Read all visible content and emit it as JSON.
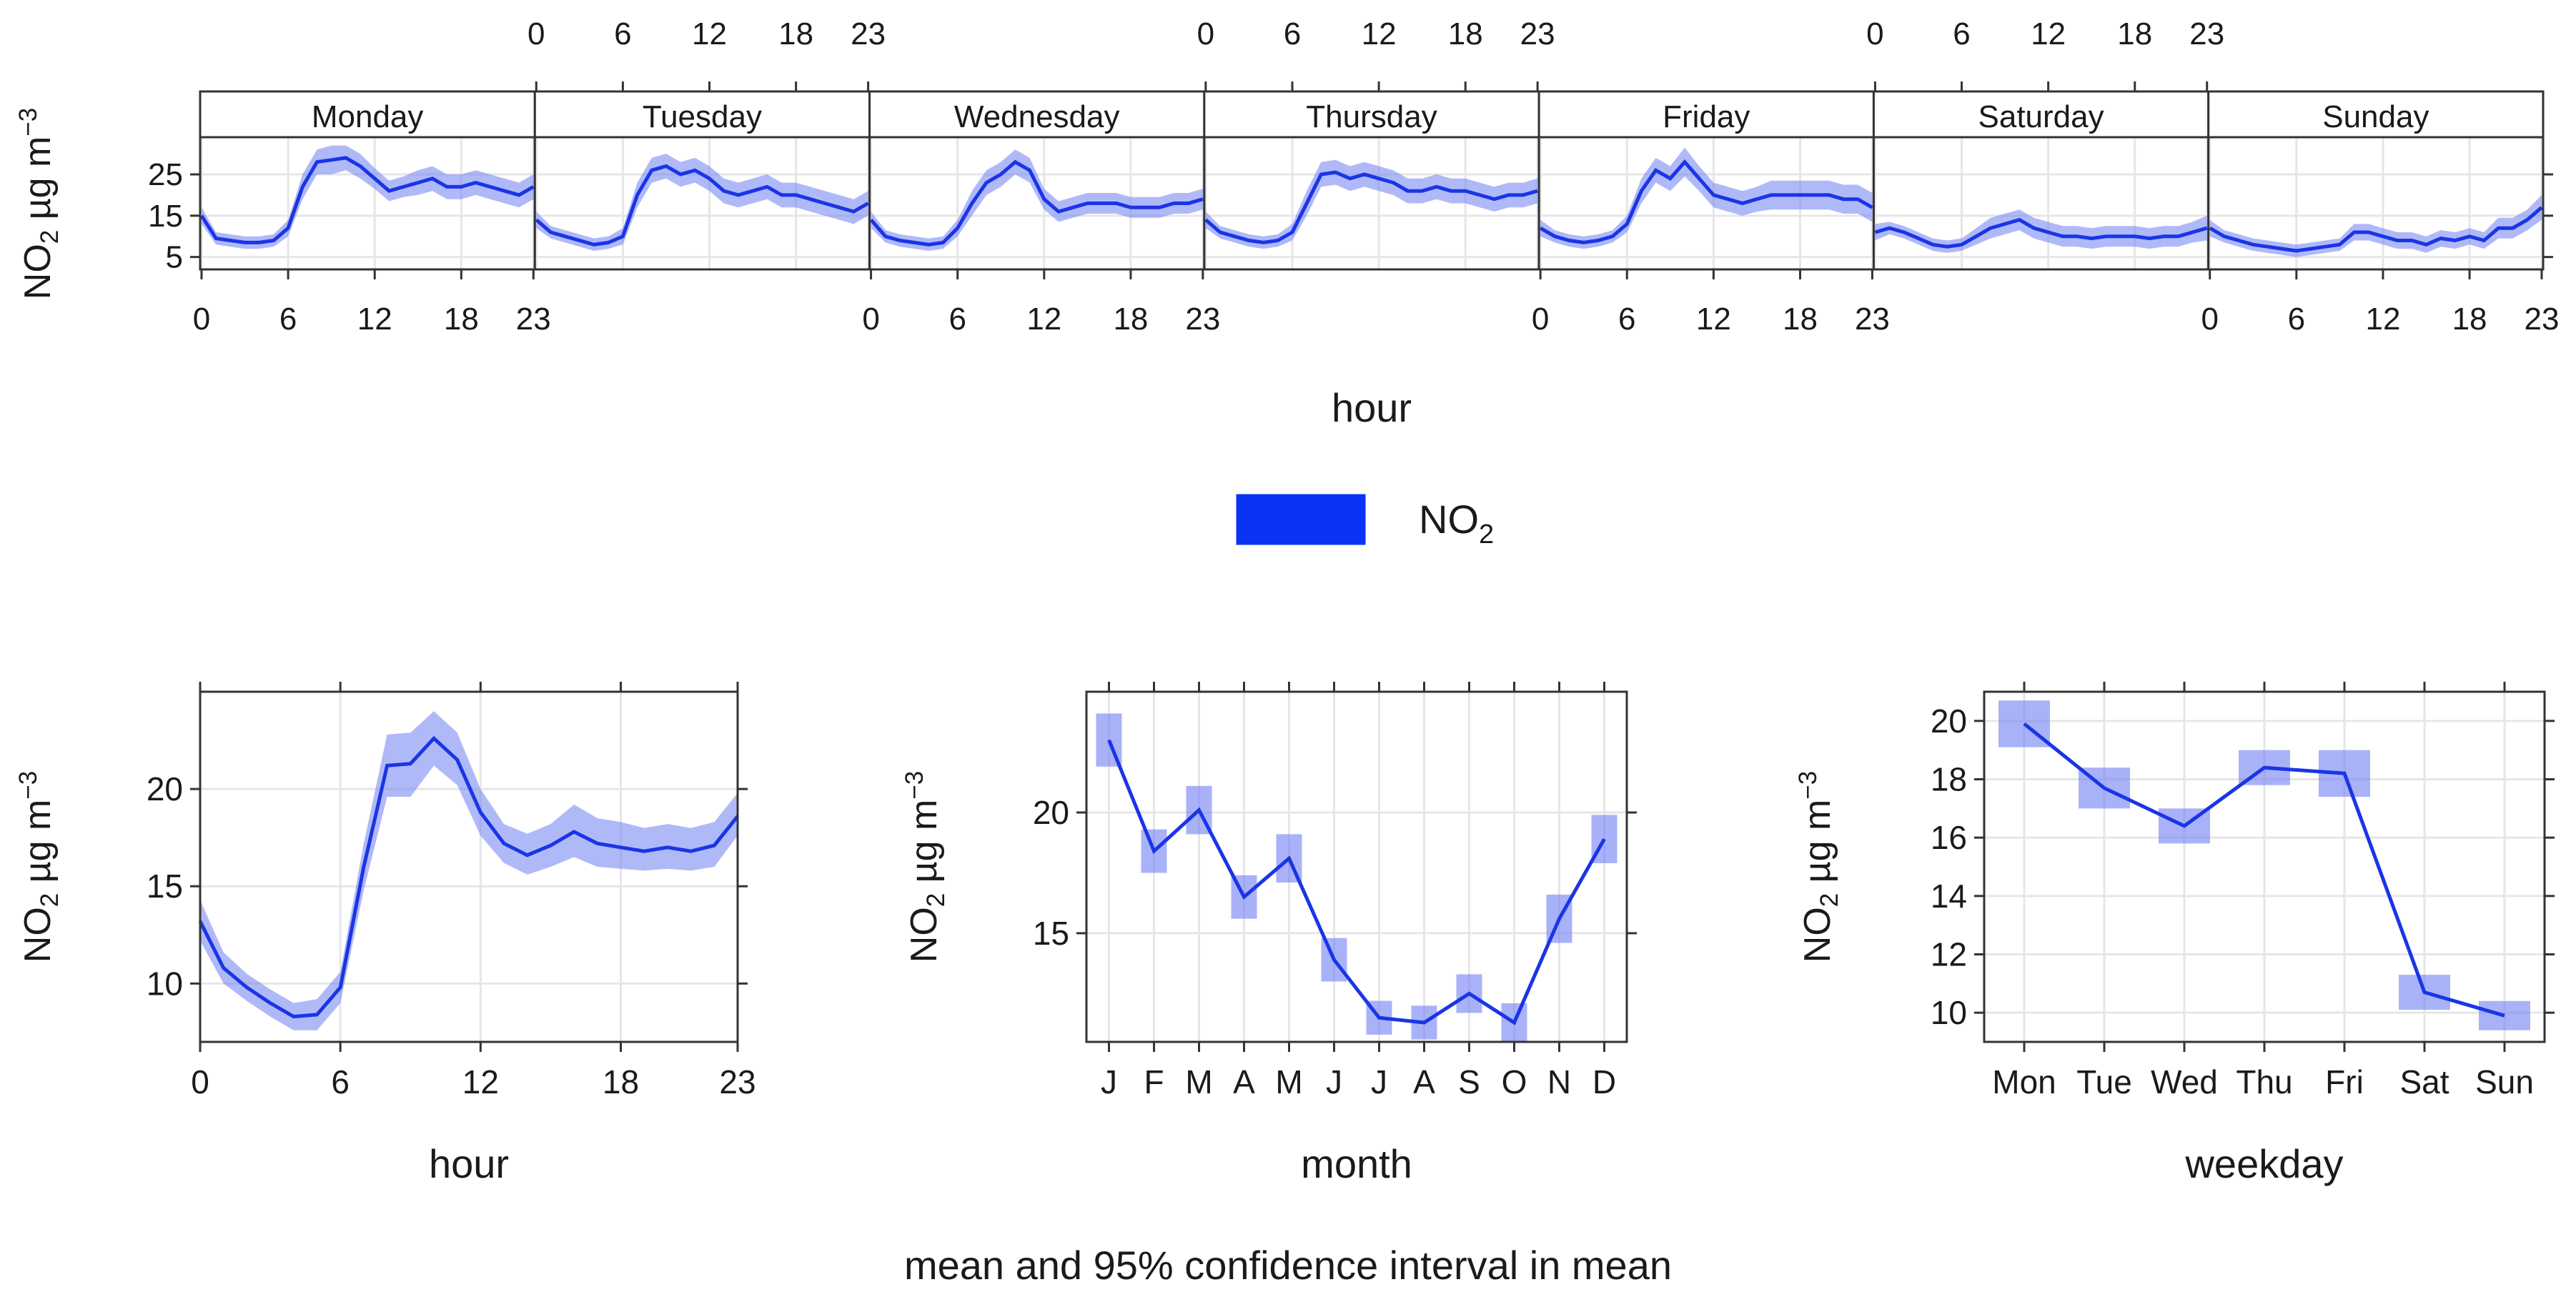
{
  "colors": {
    "line": "#1a35e6",
    "band": "#6f7ff3",
    "legend": "#0a33f5",
    "frame": "#333333",
    "grid": "#e6e6e6",
    "strip_bg": "#ffffff"
  },
  "shared": {
    "ylabel_main": "NO",
    "ylabel_sub": "2",
    "ylabel_unit": " µg m",
    "ylabel_sup": "−3"
  },
  "legend": {
    "label_main": "NO",
    "label_sub": "2"
  },
  "caption": "mean and 95% confidence interval in mean",
  "chart_data": [
    {
      "id": "hour-by-weekday",
      "type": "line",
      "xlabel": "hour",
      "x_ticks": [
        "0",
        "6",
        "12",
        "18",
        "23"
      ],
      "x_tick_values": [
        0,
        6,
        12,
        18,
        23
      ],
      "y_ticks": [
        "5",
        "15",
        "25"
      ],
      "y_tick_values": [
        5,
        15,
        25
      ],
      "ylim": [
        2,
        34
      ],
      "xlim": [
        0,
        23
      ],
      "panels": [
        {
          "name": "Monday",
          "mean": [
            15,
            9.5,
            9,
            8.5,
            8.5,
            9,
            12,
            22,
            28,
            28.5,
            29,
            27,
            24,
            21,
            22,
            23,
            24,
            22,
            22,
            23,
            22,
            21,
            20,
            22
          ],
          "ci": [
            2,
            1.5,
            1.5,
            1.5,
            1.5,
            1.5,
            2,
            3,
            3,
            3.5,
            3,
            3,
            2.5,
            2.5,
            2.5,
            3,
            3,
            3,
            3,
            3,
            3,
            3,
            3,
            3
          ]
        },
        {
          "name": "Tuesday",
          "mean": [
            14,
            11,
            10,
            9,
            8,
            8.5,
            10,
            20,
            26,
            27,
            25,
            26,
            24,
            21,
            20,
            21,
            22,
            20,
            20,
            19,
            18,
            17,
            16,
            18
          ],
          "ci": [
            2,
            1.5,
            1.5,
            1.5,
            1.5,
            1.5,
            2,
            3,
            3,
            3,
            3,
            3,
            3,
            3,
            3,
            3,
            3,
            3,
            3,
            3,
            3,
            3,
            3,
            3
          ]
        },
        {
          "name": "Wednesday",
          "mean": [
            14,
            10,
            9,
            8.5,
            8,
            8.5,
            12,
            18,
            23,
            25,
            28,
            26,
            19,
            16,
            17,
            18,
            18,
            18,
            17,
            17,
            17,
            18,
            18,
            19
          ],
          "ci": [
            2,
            1.5,
            1.5,
            1.5,
            1.5,
            1.5,
            2,
            3,
            3,
            3,
            3,
            3,
            2.5,
            2.5,
            2.5,
            2.5,
            2.5,
            2.5,
            2.5,
            2.5,
            2.5,
            2.5,
            2.5,
            2.5
          ]
        },
        {
          "name": "Thursday",
          "mean": [
            14,
            11,
            10,
            9,
            8.5,
            9,
            11,
            18,
            25,
            25.5,
            24,
            25,
            24,
            23,
            21,
            21,
            22,
            21,
            21,
            20,
            19,
            20,
            20,
            21
          ],
          "ci": [
            2,
            1.5,
            1.5,
            1.5,
            1.5,
            1.5,
            2,
            3,
            3,
            3,
            3,
            3,
            3,
            3,
            3,
            3,
            3,
            3,
            3,
            3,
            3,
            3,
            3,
            3
          ]
        },
        {
          "name": "Friday",
          "mean": [
            12,
            10,
            9,
            8.5,
            9,
            10,
            13,
            21,
            26,
            24,
            28,
            24,
            20,
            19,
            18,
            19,
            20,
            20,
            20,
            20,
            20,
            19,
            19,
            17
          ],
          "ci": [
            2,
            1.5,
            1.5,
            1.5,
            1.5,
            1.5,
            2,
            3,
            3,
            3,
            3.5,
            3,
            3,
            3,
            3,
            3,
            3.5,
            3.5,
            3.5,
            3.5,
            3.5,
            3.5,
            3.5,
            3.5
          ]
        },
        {
          "name": "Saturday",
          "mean": [
            11,
            12,
            11,
            9.5,
            8,
            7.5,
            8,
            10,
            12,
            13,
            14,
            12,
            11,
            10,
            10,
            9.5,
            10,
            10,
            10,
            9.5,
            10,
            10,
            11,
            12
          ],
          "ci": [
            2,
            1.5,
            1.5,
            1.5,
            1.5,
            1.5,
            1.5,
            2,
            2.5,
            2.5,
            2.5,
            2.5,
            2.5,
            2.5,
            2.5,
            2.5,
            2.5,
            2.5,
            2.5,
            2.5,
            2.5,
            2.5,
            2.5,
            3
          ]
        },
        {
          "name": "Sunday",
          "mean": [
            12,
            10,
            9,
            8,
            7.5,
            7,
            6.5,
            7,
            7.5,
            8,
            11,
            11,
            10,
            9,
            9,
            8,
            9.5,
            9,
            10,
            9,
            12,
            12,
            14,
            17
          ],
          "ci": [
            2,
            1.5,
            1.5,
            1.5,
            1.5,
            1.5,
            1.5,
            1.5,
            1.5,
            1.5,
            2,
            2,
            2,
            2,
            2,
            2,
            2,
            2,
            2,
            2,
            2.5,
            2.5,
            2.5,
            3
          ]
        }
      ]
    },
    {
      "id": "hour",
      "type": "line",
      "xlabel": "hour",
      "x": [
        0,
        1,
        2,
        3,
        4,
        5,
        6,
        7,
        8,
        9,
        10,
        11,
        12,
        13,
        14,
        15,
        16,
        17,
        18,
        19,
        20,
        21,
        22,
        23
      ],
      "mean": [
        13.2,
        10.8,
        9.8,
        9.0,
        8.3,
        8.4,
        9.8,
        16.0,
        21.2,
        21.3,
        22.6,
        21.5,
        18.8,
        17.2,
        16.6,
        17.1,
        17.8,
        17.2,
        17.0,
        16.8,
        17.0,
        16.8,
        17.1,
        18.6
      ],
      "lower": [
        12.2,
        10.0,
        9.1,
        8.3,
        7.6,
        7.6,
        9.0,
        14.8,
        19.6,
        19.6,
        21.2,
        20.2,
        17.6,
        16.2,
        15.6,
        16.0,
        16.5,
        16.0,
        15.9,
        15.8,
        15.9,
        15.8,
        16.0,
        17.6
      ],
      "upper": [
        14.3,
        11.6,
        10.5,
        9.7,
        9.0,
        9.2,
        10.6,
        17.2,
        22.8,
        22.9,
        24.0,
        22.9,
        20.0,
        18.2,
        17.7,
        18.2,
        19.2,
        18.5,
        18.3,
        18.0,
        18.2,
        18.0,
        18.3,
        19.8
      ],
      "x_ticks": [
        "0",
        "6",
        "12",
        "18",
        "23"
      ],
      "x_tick_values": [
        0,
        6,
        12,
        18,
        23
      ],
      "y_ticks": [
        "10",
        "15",
        "20"
      ],
      "y_tick_values": [
        10,
        15,
        20
      ],
      "ylim": [
        7,
        25
      ],
      "xlim": [
        0,
        23
      ]
    },
    {
      "id": "month",
      "type": "line",
      "xlabel": "month",
      "categories": [
        "J",
        "F",
        "M",
        "A",
        "M",
        "J",
        "J",
        "A",
        "S",
        "O",
        "N",
        "D"
      ],
      "mean": [
        23.0,
        18.4,
        20.1,
        16.5,
        18.1,
        13.9,
        11.5,
        11.3,
        12.5,
        11.3,
        15.6,
        18.9
      ],
      "lower": [
        21.9,
        17.5,
        19.1,
        15.6,
        17.1,
        13.0,
        10.8,
        10.6,
        11.7,
        10.5,
        14.6,
        17.9
      ],
      "upper": [
        24.1,
        19.3,
        21.1,
        17.4,
        19.1,
        14.8,
        12.2,
        12.0,
        13.3,
        12.1,
        16.6,
        19.9
      ],
      "y_ticks": [
        "15",
        "20"
      ],
      "y_tick_values": [
        15,
        20
      ],
      "ylim": [
        10.5,
        25
      ]
    },
    {
      "id": "weekday",
      "type": "line",
      "xlabel": "weekday",
      "categories": [
        "Mon",
        "Tue",
        "Wed",
        "Thu",
        "Fri",
        "Sat",
        "Sun"
      ],
      "mean": [
        19.9,
        17.7,
        16.4,
        18.4,
        18.2,
        10.7,
        9.9
      ],
      "lower": [
        19.1,
        17.0,
        15.8,
        17.8,
        17.4,
        10.1,
        9.4
      ],
      "upper": [
        20.7,
        18.4,
        17.0,
        19.0,
        19.0,
        11.3,
        10.4
      ],
      "y_ticks": [
        "10",
        "12",
        "14",
        "16",
        "18",
        "20"
      ],
      "y_tick_values": [
        10,
        12,
        14,
        16,
        18,
        20
      ],
      "ylim": [
        9.0,
        21.0
      ]
    }
  ]
}
